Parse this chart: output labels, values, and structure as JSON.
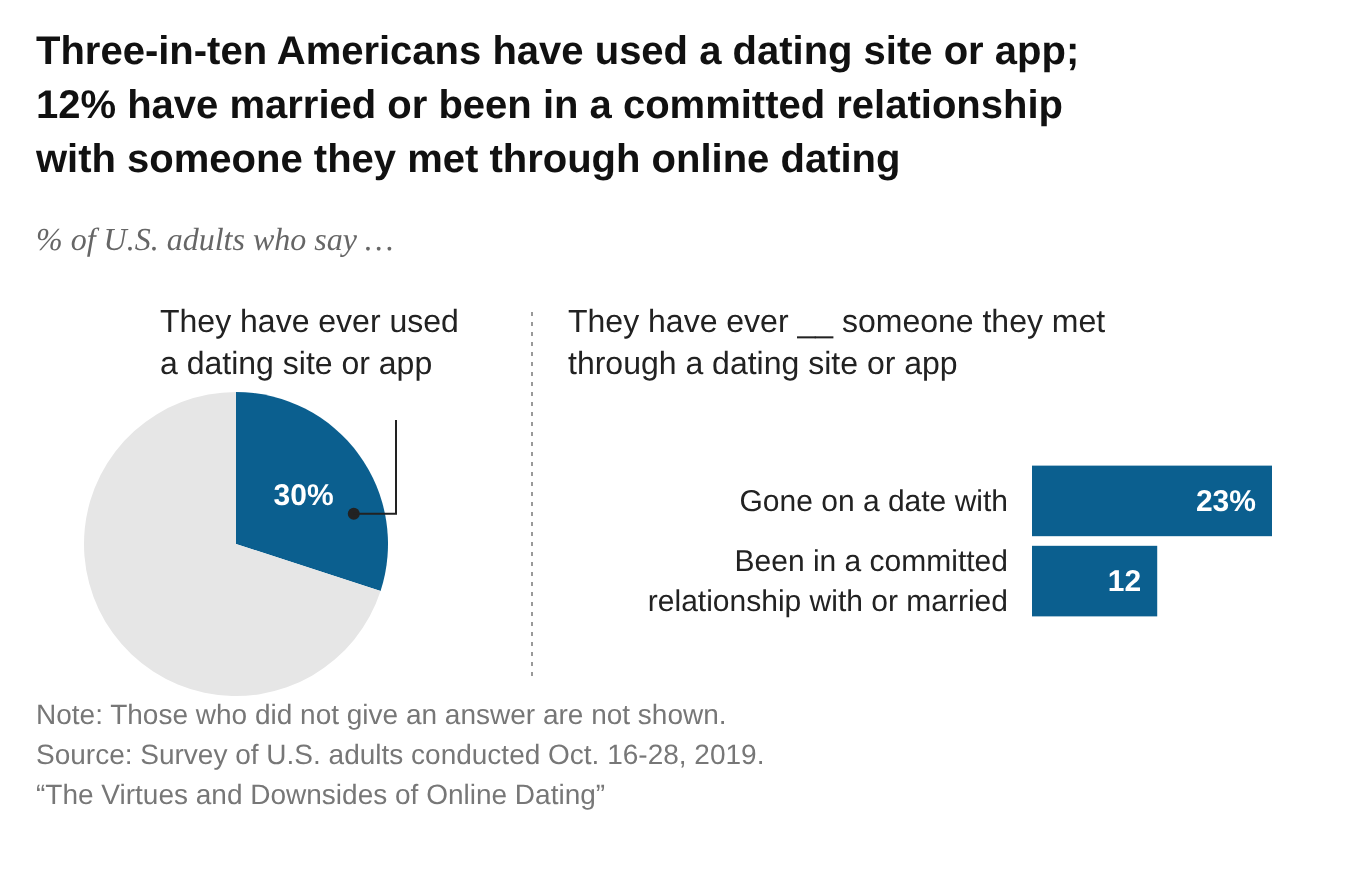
{
  "chart_data": [
    {
      "type": "pie",
      "title": "Three-in-ten Americans have used a dating site or app; 12% have married or been in a committed relationship with someone they met through online dating",
      "subtitle": "% of U.S. adults who say …",
      "xlabel": "They have ever used a dating site or app",
      "categories": [
        null,
        null
      ],
      "values": [
        30,
        70
      ],
      "colors": [
        "#0b5f8f",
        "#e6e6e6"
      ],
      "value_labels": [
        "30%",
        null
      ],
      "annotations": [
        "Note: Those who did not give an answer are not shown.",
        "Source: Survey of U.S. adults conducted Oct. 16-28, 2019.",
        "“The Virtues and Downsides of Online Dating”"
      ]
    },
    {
      "type": "bar",
      "orientation": "horizontal",
      "title": "They have ever __ someone they met through a dating site or app",
      "categories": [
        "Gone on a date with",
        "Been in a committed relationship with or married"
      ],
      "values": [
        23,
        12
      ],
      "color": "#0b5f8f",
      "value_labels": [
        "23%",
        "12"
      ]
    }
  ]
}
